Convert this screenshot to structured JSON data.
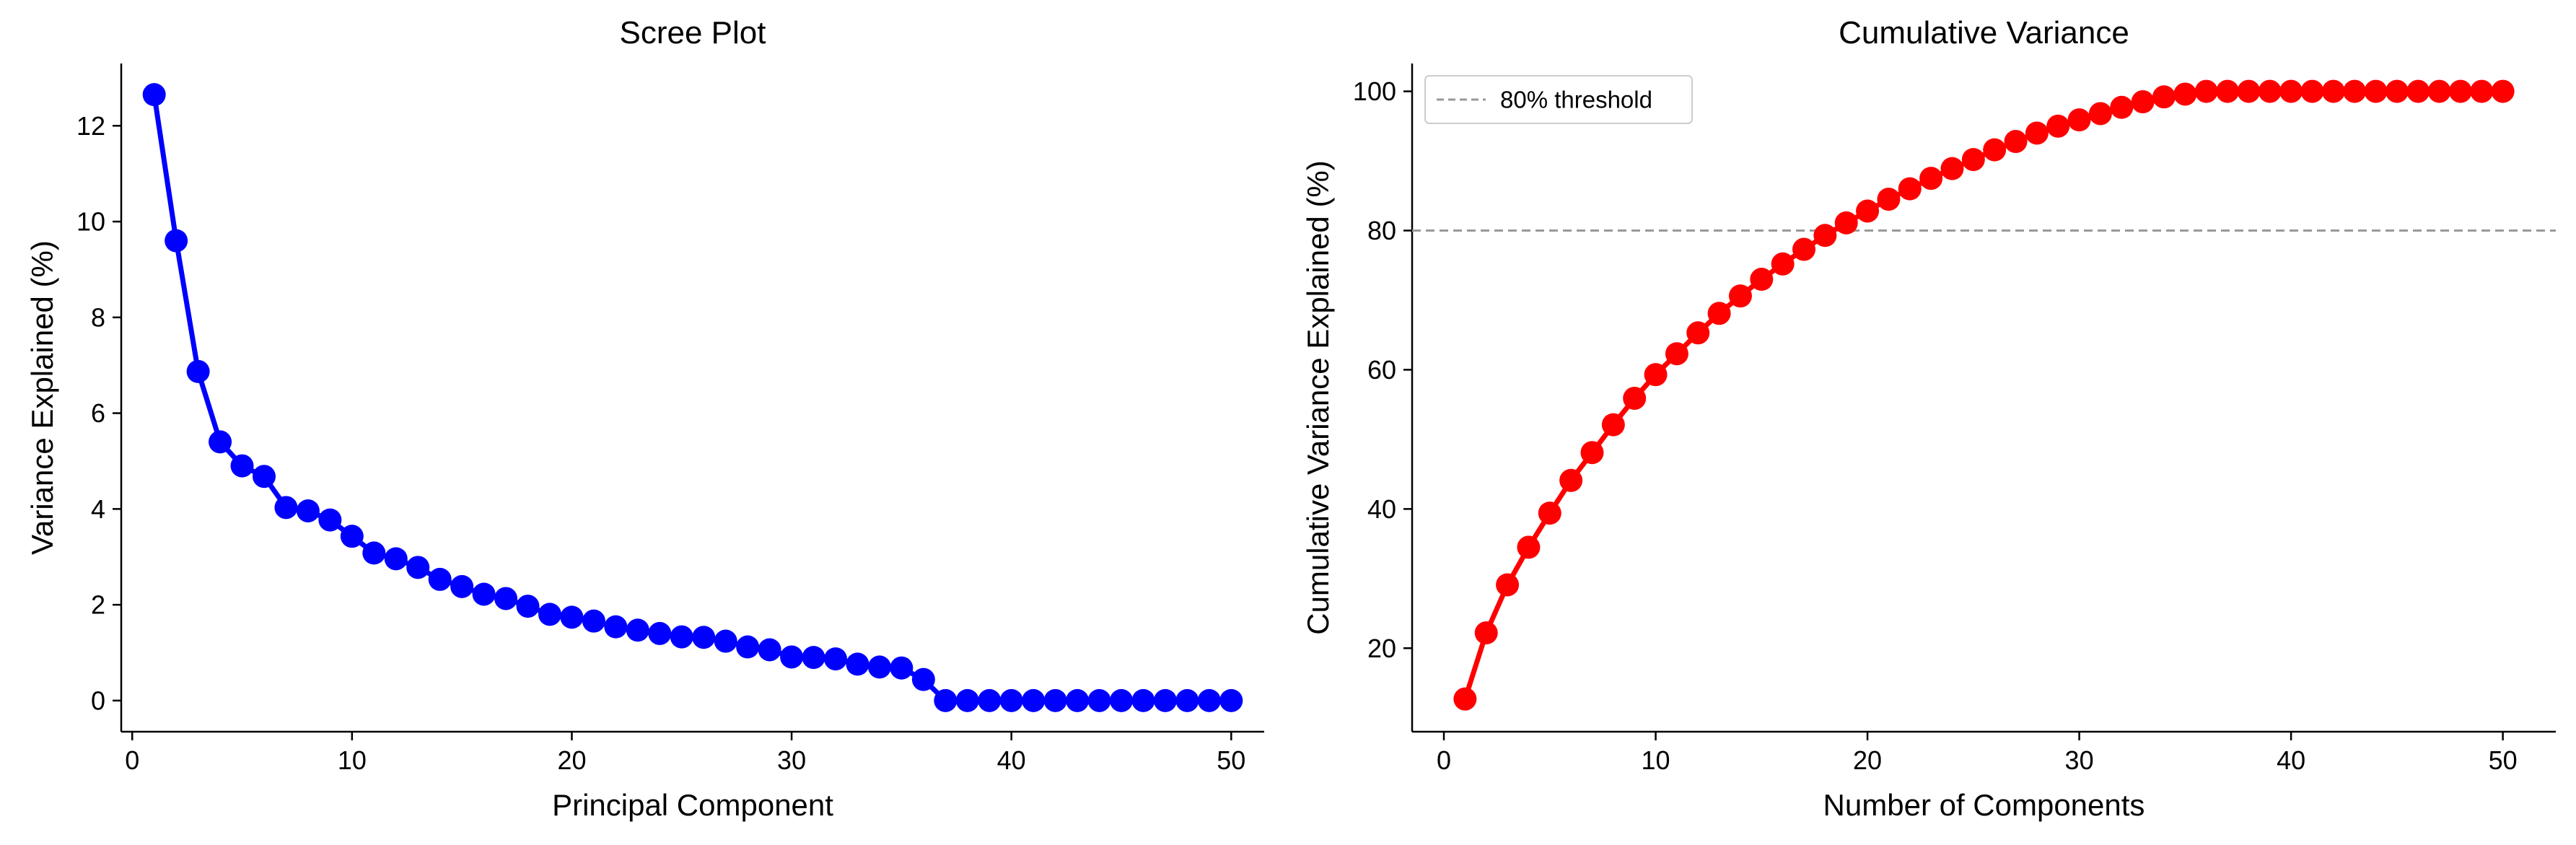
{
  "chart_data": [
    {
      "type": "line",
      "title": "Scree Plot",
      "xlabel": "Principal Component",
      "ylabel": "Variance Explained (%)",
      "xlim": [
        -0.5,
        51.5
      ],
      "ylim": [
        -0.65,
        13.3
      ],
      "xticks": [
        0,
        10,
        20,
        30,
        40,
        50
      ],
      "yticks": [
        0,
        2,
        4,
        6,
        8,
        10,
        12
      ],
      "grid": false,
      "series": [
        {
          "color": "#0000ff",
          "marker": "circle",
          "x": [
            1,
            2,
            3,
            4,
            5,
            6,
            7,
            8,
            9,
            10,
            11,
            12,
            13,
            14,
            15,
            16,
            17,
            18,
            19,
            20,
            21,
            22,
            23,
            24,
            25,
            26,
            27,
            28,
            29,
            30,
            31,
            32,
            33,
            34,
            35,
            36,
            37,
            38,
            39,
            40,
            41,
            42,
            43,
            44,
            45,
            46,
            47,
            48,
            49,
            50
          ],
          "y": [
            12.65,
            9.6,
            6.87,
            5.4,
            4.9,
            4.68,
            4.03,
            3.96,
            3.77,
            3.43,
            3.08,
            2.96,
            2.78,
            2.53,
            2.38,
            2.22,
            2.13,
            1.97,
            1.8,
            1.74,
            1.66,
            1.54,
            1.47,
            1.4,
            1.33,
            1.32,
            1.24,
            1.12,
            1.06,
            0.91,
            0.9,
            0.87,
            0.76,
            0.7,
            0.68,
            0.44,
            0,
            0,
            0,
            0,
            0,
            0,
            0,
            0,
            0,
            0,
            0,
            0,
            0,
            0
          ]
        }
      ]
    },
    {
      "type": "line",
      "title": "Cumulative Variance",
      "xlabel": "Number of Components",
      "ylabel": "Cumulative Variance Explained (%)",
      "xlim": [
        -1.5,
        52.5
      ],
      "ylim": [
        8,
        104
      ],
      "xticks": [
        0,
        10,
        20,
        30,
        40,
        50
      ],
      "yticks": [
        20,
        40,
        60,
        80,
        100
      ],
      "grid": false,
      "legend": {
        "position": "top-left",
        "entries": [
          {
            "label": "80% threshold",
            "style": "dashed",
            "color": "#999999"
          }
        ]
      },
      "reference_lines": [
        {
          "axis": "y",
          "value": 80,
          "label": "80% threshold",
          "color": "#999999",
          "style": "dashed"
        }
      ],
      "series": [
        {
          "color": "#ff0000",
          "marker": "circle",
          "x": [
            1,
            2,
            3,
            4,
            5,
            6,
            7,
            8,
            9,
            10,
            11,
            12,
            13,
            14,
            15,
            16,
            17,
            18,
            19,
            20,
            21,
            22,
            23,
            24,
            25,
            26,
            27,
            28,
            29,
            30,
            31,
            32,
            33,
            34,
            35,
            36,
            37,
            38,
            39,
            40,
            41,
            42,
            43,
            44,
            45,
            46,
            47,
            48,
            49,
            50
          ],
          "y": [
            12.7,
            22.2,
            29.1,
            34.5,
            39.4,
            44.1,
            48.1,
            52.1,
            55.9,
            59.3,
            62.3,
            65.3,
            68.1,
            70.6,
            73.0,
            75.2,
            77.3,
            79.3,
            81.1,
            82.8,
            84.5,
            86.0,
            87.5,
            88.9,
            90.2,
            91.6,
            92.8,
            94.0,
            95.0,
            95.9,
            96.8,
            97.7,
            98.5,
            99.2,
            99.6,
            100,
            100,
            100,
            100,
            100,
            100,
            100,
            100,
            100,
            100,
            100,
            100,
            100,
            100,
            100
          ]
        }
      ]
    }
  ]
}
